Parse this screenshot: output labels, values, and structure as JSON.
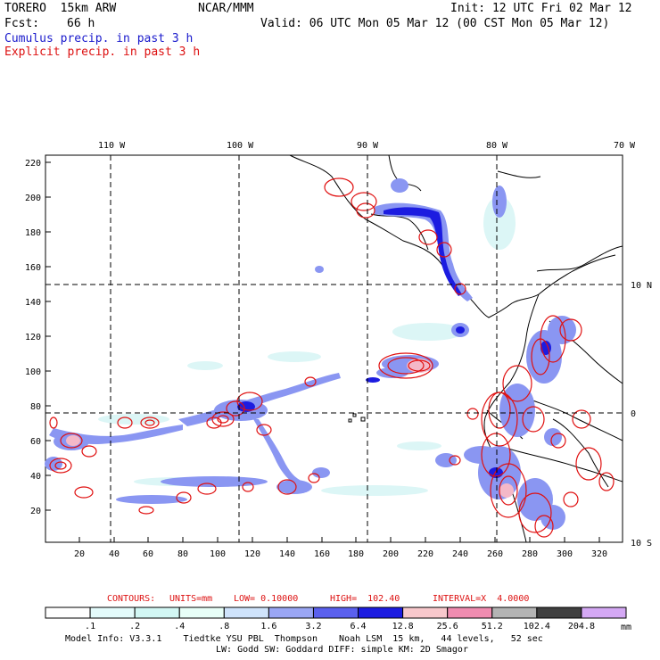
{
  "header": {
    "model": "TORERO  15km ARW",
    "center": "NCAR/MMM",
    "init": "Init: 12 UTC Fri 02 Mar 12",
    "fcst_label": "Fcst:",
    "fcst_value": "66 h",
    "valid": "Valid: 06 UTC Mon 05 Mar 12 (00 CST Mon 05 Mar 12)",
    "cumulus": "Cumulus precip. in past 3 h",
    "explicit": "Explicit precip. in past 3 h"
  },
  "map": {
    "lon_labels": [
      "110 W",
      "100 W",
      "90 W",
      "80 W",
      "70 W"
    ],
    "lat_labels": [
      "10 N",
      "0",
      "10 S"
    ],
    "y_ticks": [
      "220",
      "200",
      "180",
      "160",
      "140",
      "120",
      "100",
      "80",
      "60",
      "40",
      "20"
    ],
    "x_ticks": [
      "20",
      "40",
      "60",
      "80",
      "100",
      "120",
      "140",
      "160",
      "180",
      "200",
      "220",
      "240",
      "260",
      "280",
      "300",
      "320"
    ]
  },
  "contours": {
    "label": "CONTOURS:",
    "units": "UNITS=mm",
    "low": "LOW= 0.10000",
    "high": "HIGH=  102.40",
    "interval": "INTERVAL=X  4.0000"
  },
  "colorbar": {
    "labels": [
      ".1",
      ".2",
      ".4",
      ".8",
      "1.6",
      "3.2",
      "6.4",
      "12.8",
      "25.6",
      "51.2",
      "102.4",
      "204.8"
    ],
    "unit": "mm",
    "colors": [
      "#ffffff",
      "#e4fbfb",
      "#d2f7f4",
      "#e8fff8",
      "#cfe3fb",
      "#9aa6f4",
      "#5a60ee",
      "#1c1ce0",
      "#f8c8cc",
      "#f08cb0",
      "#b4b4b4",
      "#404040",
      "#d4a8f4"
    ]
  },
  "footer": {
    "line1": "Model Info: V3.3.1    Tiedtke YSU PBL  Thompson    Noah LSM  15 km,   44 levels,   52 sec",
    "line2": "LW: Godd SW: Goddard DIFF: simple KM: 2D Smagor"
  }
}
